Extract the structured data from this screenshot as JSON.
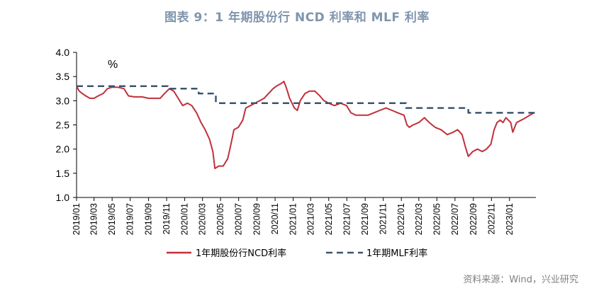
{
  "title": "图表 9：1 年期股份行 NCD 利率和 MLF 利率",
  "source": "资料来源：Wind，兴业研究",
  "colors": {
    "title": "#7f95ad",
    "ncd": "#c0303a",
    "mlf": "#3d5470"
  },
  "chart_data": {
    "type": "line",
    "y_unit": "%",
    "ylim": [
      1.0,
      4.0
    ],
    "y_ticks": [
      "1.0",
      "1.5",
      "2.0",
      "2.5",
      "3.0",
      "3.5",
      "4.0"
    ],
    "xlim": [
      "2019-01-01",
      "2023-03-31"
    ],
    "x_ticks": [
      "2019/01",
      "2019/03",
      "2019/05",
      "2019/07",
      "2019/09",
      "2019/11",
      "2020/01",
      "2020/03",
      "2020/05",
      "2020/07",
      "2020/09",
      "2020/11",
      "2021/01",
      "2021/03",
      "2021/05",
      "2021/07",
      "2021/09",
      "2021/11",
      "2022/01",
      "2022/03",
      "2022/05",
      "2022/07",
      "2022/09",
      "2022/11",
      "2023/01"
    ],
    "grid": false,
    "legend_position": "bottom",
    "series": [
      {
        "name": "1年期股份行NCD利率",
        "style": "solid",
        "points": [
          [
            "2019-01-01",
            3.3
          ],
          [
            "2019-01-10",
            3.2
          ],
          [
            "2019-01-20",
            3.15
          ],
          [
            "2019-02-01",
            3.1
          ],
          [
            "2019-02-15",
            3.05
          ],
          [
            "2019-03-01",
            3.05
          ],
          [
            "2019-03-15",
            3.1
          ],
          [
            "2019-04-01",
            3.15
          ],
          [
            "2019-04-15",
            3.25
          ],
          [
            "2019-05-01",
            3.28
          ],
          [
            "2019-05-20",
            3.28
          ],
          [
            "2019-06-10",
            3.25
          ],
          [
            "2019-06-25",
            3.1
          ],
          [
            "2019-07-15",
            3.08
          ],
          [
            "2019-08-10",
            3.08
          ],
          [
            "2019-09-01",
            3.05
          ],
          [
            "2019-09-20",
            3.05
          ],
          [
            "2019-10-10",
            3.05
          ],
          [
            "2019-10-25",
            3.15
          ],
          [
            "2019-11-10",
            3.25
          ],
          [
            "2019-11-25",
            3.2
          ],
          [
            "2019-12-10",
            3.05
          ],
          [
            "2019-12-25",
            2.9
          ],
          [
            "2020-01-10",
            2.95
          ],
          [
            "2020-01-25",
            2.9
          ],
          [
            "2020-02-10",
            2.75
          ],
          [
            "2020-02-25",
            2.55
          ],
          [
            "2020-03-10",
            2.4
          ],
          [
            "2020-03-25",
            2.2
          ],
          [
            "2020-04-05",
            1.95
          ],
          [
            "2020-04-12",
            1.6
          ],
          [
            "2020-04-25",
            1.65
          ],
          [
            "2020-05-10",
            1.65
          ],
          [
            "2020-05-25",
            1.8
          ],
          [
            "2020-06-05",
            2.1
          ],
          [
            "2020-06-15",
            2.4
          ],
          [
            "2020-06-30",
            2.45
          ],
          [
            "2020-07-15",
            2.6
          ],
          [
            "2020-07-25",
            2.85
          ],
          [
            "2020-08-10",
            2.9
          ],
          [
            "2020-08-25",
            2.95
          ],
          [
            "2020-09-10",
            3.0
          ],
          [
            "2020-09-25",
            3.05
          ],
          [
            "2020-10-10",
            3.15
          ],
          [
            "2020-10-25",
            3.25
          ],
          [
            "2020-11-05",
            3.3
          ],
          [
            "2020-11-20",
            3.35
          ],
          [
            "2020-12-01",
            3.4
          ],
          [
            "2020-12-10",
            3.25
          ],
          [
            "2020-12-20",
            3.05
          ],
          [
            "2021-01-05",
            2.85
          ],
          [
            "2021-01-15",
            2.8
          ],
          [
            "2021-01-25",
            3.0
          ],
          [
            "2021-02-10",
            3.15
          ],
          [
            "2021-02-25",
            3.2
          ],
          [
            "2021-03-15",
            3.2
          ],
          [
            "2021-04-01",
            3.1
          ],
          [
            "2021-04-15",
            3.0
          ],
          [
            "2021-05-01",
            2.95
          ],
          [
            "2021-05-20",
            2.9
          ],
          [
            "2021-06-10",
            2.95
          ],
          [
            "2021-06-30",
            2.9
          ],
          [
            "2021-07-15",
            2.75
          ],
          [
            "2021-08-01",
            2.7
          ],
          [
            "2021-08-20",
            2.7
          ],
          [
            "2021-09-10",
            2.7
          ],
          [
            "2021-09-30",
            2.75
          ],
          [
            "2021-10-20",
            2.8
          ],
          [
            "2021-11-10",
            2.85
          ],
          [
            "2021-12-01",
            2.8
          ],
          [
            "2021-12-20",
            2.75
          ],
          [
            "2022-01-10",
            2.7
          ],
          [
            "2022-01-20",
            2.5
          ],
          [
            "2022-01-28",
            2.45
          ],
          [
            "2022-02-10",
            2.5
          ],
          [
            "2022-03-01",
            2.55
          ],
          [
            "2022-03-20",
            2.65
          ],
          [
            "2022-04-05",
            2.55
          ],
          [
            "2022-04-25",
            2.45
          ],
          [
            "2022-05-15",
            2.4
          ],
          [
            "2022-06-05",
            2.3
          ],
          [
            "2022-06-25",
            2.35
          ],
          [
            "2022-07-10",
            2.4
          ],
          [
            "2022-07-25",
            2.3
          ],
          [
            "2022-08-05",
            2.05
          ],
          [
            "2022-08-15",
            1.85
          ],
          [
            "2022-08-30",
            1.95
          ],
          [
            "2022-09-15",
            2.0
          ],
          [
            "2022-10-01",
            1.95
          ],
          [
            "2022-10-15",
            2.0
          ],
          [
            "2022-10-30",
            2.1
          ],
          [
            "2022-11-10",
            2.4
          ],
          [
            "2022-11-20",
            2.55
          ],
          [
            "2022-12-01",
            2.6
          ],
          [
            "2022-12-10",
            2.55
          ],
          [
            "2022-12-20",
            2.65
          ],
          [
            "2023-01-05",
            2.55
          ],
          [
            "2023-01-12",
            2.35
          ],
          [
            "2023-01-25",
            2.55
          ],
          [
            "2023-02-10",
            2.6
          ],
          [
            "2023-02-25",
            2.65
          ],
          [
            "2023-03-10",
            2.7
          ],
          [
            "2023-03-25",
            2.75
          ]
        ]
      },
      {
        "name": "1年期MLF利率",
        "style": "dashed",
        "points": [
          [
            "2019-01-01",
            3.3
          ],
          [
            "2019-11-05",
            3.3
          ],
          [
            "2019-11-05",
            3.25
          ],
          [
            "2020-02-17",
            3.25
          ],
          [
            "2020-02-17",
            3.15
          ],
          [
            "2020-04-15",
            3.15
          ],
          [
            "2020-04-15",
            2.95
          ],
          [
            "2022-01-17",
            2.95
          ],
          [
            "2022-01-17",
            2.85
          ],
          [
            "2022-08-15",
            2.85
          ],
          [
            "2022-08-15",
            2.75
          ],
          [
            "2023-03-31",
            2.75
          ]
        ]
      }
    ]
  }
}
